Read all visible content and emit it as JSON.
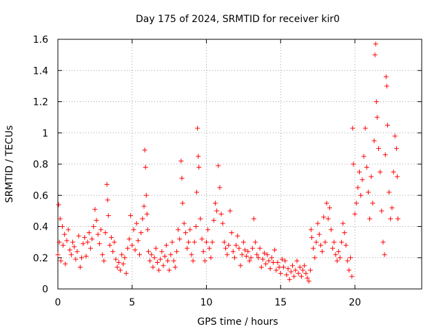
{
  "chart_data": {
    "type": "scatter",
    "title": "Day 175 of 2024, SRMTID for receiver kir0",
    "xlabel": "GPS time / hours",
    "ylabel": "SRMTID / TECUs",
    "xlim": [
      0,
      24.5
    ],
    "ylim": [
      0,
      1.6
    ],
    "x_ticks": [
      0,
      5,
      10,
      15,
      20
    ],
    "x_tick_labels": [
      "0",
      "5",
      "10",
      "15",
      "20"
    ],
    "y_ticks": [
      0,
      0.2,
      0.4,
      0.6,
      0.8,
      1.0,
      1.2,
      1.4,
      1.6
    ],
    "y_tick_labels": [
      "0",
      "0.2",
      "0.4",
      "0.6",
      "0.8",
      "1",
      "1.2",
      "1.4",
      "1.6"
    ],
    "grid": true,
    "marker": "plus",
    "series_color": "#ff0000",
    "series": [
      {
        "name": "kir0",
        "points": [
          [
            0.0,
            0.22
          ],
          [
            0.05,
            0.54
          ],
          [
            0.1,
            0.3
          ],
          [
            0.15,
            0.45
          ],
          [
            0.2,
            0.18
          ],
          [
            0.3,
            0.4
          ],
          [
            0.35,
            0.28
          ],
          [
            0.45,
            0.35
          ],
          [
            0.5,
            0.16
          ],
          [
            0.6,
            0.31
          ],
          [
            0.7,
            0.38
          ],
          [
            0.8,
            0.25
          ],
          [
            0.9,
            0.22
          ],
          [
            1.0,
            0.3
          ],
          [
            1.1,
            0.27
          ],
          [
            1.2,
            0.19
          ],
          [
            1.3,
            0.24
          ],
          [
            1.4,
            0.34
          ],
          [
            1.5,
            0.14
          ],
          [
            1.6,
            0.2
          ],
          [
            1.7,
            0.29
          ],
          [
            1.8,
            0.33
          ],
          [
            1.9,
            0.21
          ],
          [
            2.0,
            0.3
          ],
          [
            2.1,
            0.36
          ],
          [
            2.2,
            0.26
          ],
          [
            2.3,
            0.32
          ],
          [
            2.4,
            0.4
          ],
          [
            2.5,
            0.51
          ],
          [
            2.6,
            0.44
          ],
          [
            2.7,
            0.35
          ],
          [
            2.8,
            0.29
          ],
          [
            2.9,
            0.38
          ],
          [
            3.0,
            0.22
          ],
          [
            3.1,
            0.18
          ],
          [
            3.2,
            0.36
          ],
          [
            3.3,
            0.67
          ],
          [
            3.35,
            0.57
          ],
          [
            3.4,
            0.47
          ],
          [
            3.5,
            0.28
          ],
          [
            3.6,
            0.33
          ],
          [
            3.7,
            0.24
          ],
          [
            3.8,
            0.3
          ],
          [
            3.9,
            0.19
          ],
          [
            4.0,
            0.14
          ],
          [
            4.1,
            0.17
          ],
          [
            4.2,
            0.12
          ],
          [
            4.3,
            0.22
          ],
          [
            4.4,
            0.16
          ],
          [
            4.5,
            0.2
          ],
          [
            4.6,
            0.1
          ],
          [
            4.7,
            0.26
          ],
          [
            4.8,
            0.32
          ],
          [
            4.9,
            0.47
          ],
          [
            5.0,
            0.28
          ],
          [
            5.1,
            0.38
          ],
          [
            5.2,
            0.25
          ],
          [
            5.3,
            0.42
          ],
          [
            5.4,
            0.31
          ],
          [
            5.5,
            0.22
          ],
          [
            5.6,
            0.36
          ],
          [
            5.7,
            0.45
          ],
          [
            5.8,
            0.53
          ],
          [
            5.85,
            0.89
          ],
          [
            5.9,
            0.78
          ],
          [
            5.95,
            0.6
          ],
          [
            6.0,
            0.48
          ],
          [
            6.05,
            0.38
          ],
          [
            6.1,
            0.24
          ],
          [
            6.2,
            0.18
          ],
          [
            6.3,
            0.22
          ],
          [
            6.4,
            0.14
          ],
          [
            6.5,
            0.2
          ],
          [
            6.6,
            0.26
          ],
          [
            6.7,
            0.17
          ],
          [
            6.8,
            0.12
          ],
          [
            6.9,
            0.19
          ],
          [
            7.0,
            0.24
          ],
          [
            7.1,
            0.15
          ],
          [
            7.2,
            0.21
          ],
          [
            7.3,
            0.28
          ],
          [
            7.4,
            0.18
          ],
          [
            7.5,
            0.12
          ],
          [
            7.6,
            0.22
          ],
          [
            7.7,
            0.3
          ],
          [
            7.8,
            0.18
          ],
          [
            7.9,
            0.14
          ],
          [
            8.0,
            0.24
          ],
          [
            8.1,
            0.38
          ],
          [
            8.2,
            0.32
          ],
          [
            8.3,
            0.82
          ],
          [
            8.35,
            0.71
          ],
          [
            8.4,
            0.55
          ],
          [
            8.5,
            0.42
          ],
          [
            8.6,
            0.36
          ],
          [
            8.7,
            0.26
          ],
          [
            8.8,
            0.3
          ],
          [
            8.9,
            0.38
          ],
          [
            9.0,
            0.22
          ],
          [
            9.1,
            0.18
          ],
          [
            9.2,
            0.3
          ],
          [
            9.3,
            0.4
          ],
          [
            9.35,
            0.62
          ],
          [
            9.4,
            1.03
          ],
          [
            9.45,
            0.85
          ],
          [
            9.5,
            0.78
          ],
          [
            9.6,
            0.45
          ],
          [
            9.7,
            0.32
          ],
          [
            9.8,
            0.24
          ],
          [
            9.9,
            0.18
          ],
          [
            10.0,
            0.3
          ],
          [
            10.1,
            0.38
          ],
          [
            10.2,
            0.26
          ],
          [
            10.3,
            0.2
          ],
          [
            10.4,
            0.3
          ],
          [
            10.5,
            0.44
          ],
          [
            10.6,
            0.55
          ],
          [
            10.7,
            0.5
          ],
          [
            10.8,
            0.79
          ],
          [
            10.9,
            0.65
          ],
          [
            11.0,
            0.48
          ],
          [
            11.1,
            0.42
          ],
          [
            11.2,
            0.3
          ],
          [
            11.3,
            0.26
          ],
          [
            11.4,
            0.22
          ],
          [
            11.5,
            0.28
          ],
          [
            11.6,
            0.5
          ],
          [
            11.7,
            0.36
          ],
          [
            11.8,
            0.24
          ],
          [
            11.9,
            0.2
          ],
          [
            12.0,
            0.28
          ],
          [
            12.1,
            0.34
          ],
          [
            12.2,
            0.26
          ],
          [
            12.3,
            0.15
          ],
          [
            12.4,
            0.22
          ],
          [
            12.5,
            0.3
          ],
          [
            12.6,
            0.25
          ],
          [
            12.7,
            0.21
          ],
          [
            12.8,
            0.24
          ],
          [
            12.9,
            0.18
          ],
          [
            13.0,
            0.2
          ],
          [
            13.1,
            0.26
          ],
          [
            13.2,
            0.45
          ],
          [
            13.3,
            0.3
          ],
          [
            13.4,
            0.22
          ],
          [
            13.5,
            0.2
          ],
          [
            13.6,
            0.26
          ],
          [
            13.7,
            0.14
          ],
          [
            13.8,
            0.19
          ],
          [
            13.9,
            0.23
          ],
          [
            14.0,
            0.16
          ],
          [
            14.1,
            0.22
          ],
          [
            14.2,
            0.18
          ],
          [
            14.3,
            0.13
          ],
          [
            14.4,
            0.2
          ],
          [
            14.5,
            0.17
          ],
          [
            14.6,
            0.25
          ],
          [
            14.7,
            0.12
          ],
          [
            14.8,
            0.17
          ],
          [
            14.9,
            0.14
          ],
          [
            15.0,
            0.1
          ],
          [
            15.1,
            0.19
          ],
          [
            15.2,
            0.14
          ],
          [
            15.3,
            0.18
          ],
          [
            15.4,
            0.09
          ],
          [
            15.5,
            0.13
          ],
          [
            15.6,
            0.06
          ],
          [
            15.7,
            0.11
          ],
          [
            15.8,
            0.15
          ],
          [
            15.9,
            0.08
          ],
          [
            16.0,
            0.12
          ],
          [
            16.1,
            0.18
          ],
          [
            16.2,
            0.1
          ],
          [
            16.3,
            0.14
          ],
          [
            16.4,
            0.08
          ],
          [
            16.5,
            0.12
          ],
          [
            16.6,
            0.15
          ],
          [
            16.7,
            0.1
          ],
          [
            16.8,
            0.07
          ],
          [
            16.9,
            0.05
          ],
          [
            17.0,
            0.12
          ],
          [
            17.05,
            0.38
          ],
          [
            17.1,
            0.33
          ],
          [
            17.2,
            0.26
          ],
          [
            17.3,
            0.2
          ],
          [
            17.4,
            0.3
          ],
          [
            17.5,
            0.42
          ],
          [
            17.6,
            0.35
          ],
          [
            17.7,
            0.28
          ],
          [
            17.8,
            0.24
          ],
          [
            17.9,
            0.46
          ],
          [
            18.0,
            0.3
          ],
          [
            18.1,
            0.55
          ],
          [
            18.2,
            0.45
          ],
          [
            18.3,
            0.52
          ],
          [
            18.4,
            0.38
          ],
          [
            18.5,
            0.26
          ],
          [
            18.6,
            0.3
          ],
          [
            18.7,
            0.22
          ],
          [
            18.8,
            0.18
          ],
          [
            18.9,
            0.24
          ],
          [
            19.0,
            0.2
          ],
          [
            19.1,
            0.3
          ],
          [
            19.2,
            0.42
          ],
          [
            19.3,
            0.36
          ],
          [
            19.4,
            0.28
          ],
          [
            19.5,
            0.18
          ],
          [
            19.6,
            0.12
          ],
          [
            19.7,
            0.2
          ],
          [
            19.8,
            0.08
          ],
          [
            19.85,
            1.03
          ],
          [
            19.9,
            0.8
          ],
          [
            20.0,
            0.48
          ],
          [
            20.1,
            0.55
          ],
          [
            20.2,
            0.65
          ],
          [
            20.3,
            0.75
          ],
          [
            20.4,
            0.6
          ],
          [
            20.5,
            0.7
          ],
          [
            20.6,
            0.85
          ],
          [
            20.7,
            1.03
          ],
          [
            20.8,
            0.78
          ],
          [
            20.9,
            0.62
          ],
          [
            21.0,
            0.45
          ],
          [
            21.1,
            0.72
          ],
          [
            21.2,
            0.55
          ],
          [
            21.3,
            0.95
          ],
          [
            21.35,
            1.5
          ],
          [
            21.4,
            1.57
          ],
          [
            21.45,
            1.2
          ],
          [
            21.5,
            1.1
          ],
          [
            21.6,
            0.9
          ],
          [
            21.7,
            0.75
          ],
          [
            21.8,
            0.5
          ],
          [
            21.9,
            0.3
          ],
          [
            22.0,
            0.22
          ],
          [
            22.05,
            0.86
          ],
          [
            22.1,
            1.36
          ],
          [
            22.15,
            1.3
          ],
          [
            22.2,
            1.05
          ],
          [
            22.3,
            0.62
          ],
          [
            22.4,
            0.45
          ],
          [
            22.5,
            0.52
          ],
          [
            22.6,
            0.75
          ],
          [
            22.7,
            0.98
          ],
          [
            22.8,
            0.9
          ],
          [
            22.85,
            0.72
          ],
          [
            22.9,
            0.45
          ]
        ]
      }
    ]
  }
}
